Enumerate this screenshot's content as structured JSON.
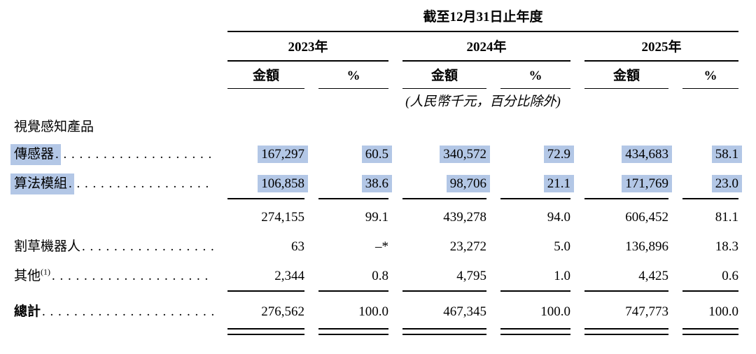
{
  "table": {
    "period_header": "截至12月31日止年度",
    "unit_note": "(人民幣千元，百分比除外)",
    "highlight_color": "#b3c7e6",
    "year_groups": [
      {
        "year": "2023年",
        "amount_label": "金額",
        "percent_label": "%"
      },
      {
        "year": "2024年",
        "amount_label": "金額",
        "percent_label": "%"
      },
      {
        "year": "2025年",
        "amount_label": "金額",
        "percent_label": "%"
      }
    ],
    "section_header": "視覺感知產品",
    "rows": [
      {
        "label": "傳感器",
        "highlighted": true,
        "values": [
          "167,297",
          "60.5",
          "340,572",
          "72.9",
          "434,683",
          "58.1"
        ]
      },
      {
        "label": "算法模組",
        "highlighted": true,
        "values": [
          "106,858",
          "38.6",
          "98,706",
          "21.1",
          "171,769",
          "23.0"
        ]
      },
      {
        "label": "",
        "values": [
          "274,155",
          "99.1",
          "439,278",
          "94.0",
          "606,452",
          "81.1"
        ]
      },
      {
        "label": "割草機器人",
        "values": [
          "63",
          "–*",
          "23,272",
          "5.0",
          "136,896",
          "18.3"
        ]
      },
      {
        "label": "其他",
        "label_sup": "(1)",
        "values": [
          "2,344",
          "0.8",
          "4,795",
          "1.0",
          "4,425",
          "0.6"
        ]
      },
      {
        "label": "總計",
        "values": [
          "276,562",
          "100.0",
          "467,345",
          "100.0",
          "747,773",
          "100.0"
        ]
      }
    ]
  }
}
